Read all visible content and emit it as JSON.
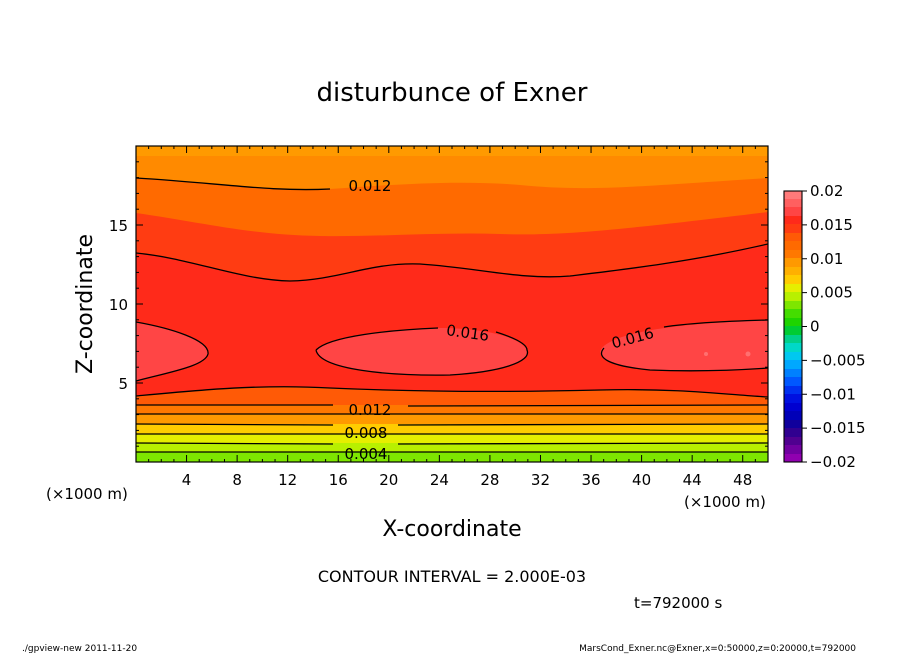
{
  "chart_data": {
    "type": "contour",
    "title": "disturbunce of Exner",
    "xlabel": "X-coordinate",
    "ylabel": "Z-coordinate",
    "x_unit_left": "(×1000 m)",
    "x_unit_right": "(×1000 m)",
    "xlim": [
      0,
      50
    ],
    "ylim": [
      0,
      20
    ],
    "x_ticks": [
      4,
      8,
      12,
      16,
      20,
      24,
      28,
      32,
      36,
      40,
      44,
      48
    ],
    "y_ticks": [
      5,
      10,
      15
    ],
    "contour_interval_text": "CONTOUR INTERVAL = 2.000E-03",
    "time_text": "t=792000 s",
    "colorbar": {
      "ticks": [
        "0.02",
        "0.015",
        "0.01",
        "0.005",
        "0",
        "−0.005",
        "−0.01",
        "−0.015",
        "−0.02"
      ],
      "min": -0.02,
      "max": 0.02
    },
    "contour_labels": [
      {
        "text": "0.012",
        "x": 20,
        "z": 17.8
      },
      {
        "text": "0.016",
        "x": 22.5,
        "z": 7.9
      },
      {
        "text": "0.016",
        "x": 39.5,
        "z": 7.9
      },
      {
        "text": "0.012",
        "x": 20,
        "z": 3.4
      },
      {
        "text": "0.008",
        "x": 20,
        "z": 1.9
      },
      {
        "text": "0.004",
        "x": 20,
        "z": 0.5
      }
    ]
  },
  "footer": {
    "left": "./gpview-new   2011-11-20",
    "right": "MarsCond_Exner.nc@Exner,x=0:50000,z=0:20000,t=792000"
  }
}
